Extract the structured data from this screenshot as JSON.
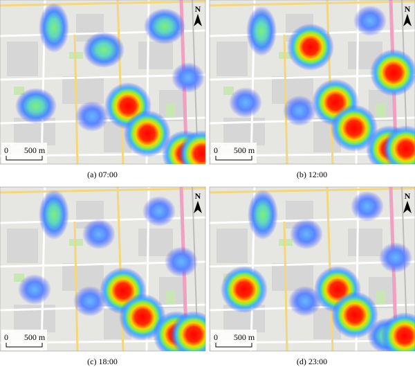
{
  "panels": [
    {
      "caption": "(a) 07:00",
      "scale_zero": "0",
      "scale_label": "500 m",
      "north": "N"
    },
    {
      "caption": "(b) 12:00",
      "scale_zero": "0",
      "scale_label": "500 m",
      "north": "N"
    },
    {
      "caption": "(c) 18:00",
      "scale_zero": "0",
      "scale_label": "500 m",
      "north": "N"
    },
    {
      "caption": "(d) 23:00",
      "scale_zero": "0",
      "scale_label": "500 m",
      "north": "N"
    }
  ]
}
